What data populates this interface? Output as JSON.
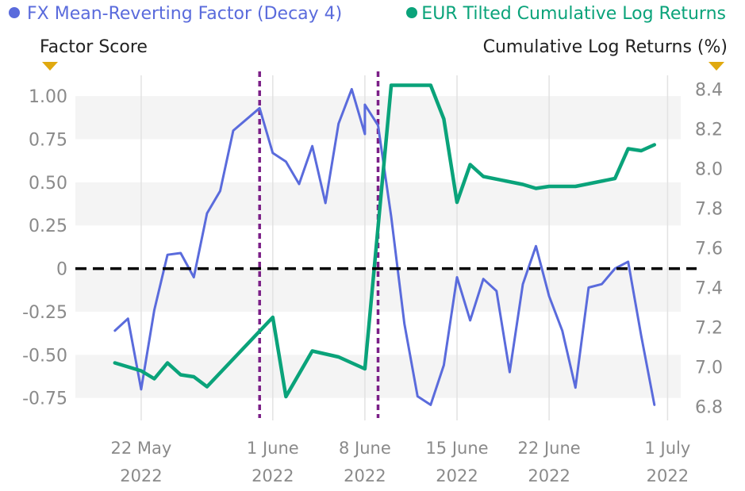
{
  "chart_data": {
    "type": "line",
    "legend": {
      "placement": "top",
      "entries": [
        {
          "name": "FX Mean-Reverting Factor (Decay 4)",
          "color": "#5a6bdc",
          "axis": "left"
        },
        {
          "name": "EUR Tilted Cumulative Log Returns",
          "color": "#0aa37a",
          "axis": "right"
        }
      ]
    },
    "left_axis": {
      "title": "Factor Score",
      "ylim": [
        -0.88,
        1.12
      ],
      "ticks": [
        1.0,
        0.75,
        0.5,
        0.25,
        0,
        -0.25,
        -0.5,
        -0.75
      ],
      "tick_labels": [
        "1.00",
        "0.75",
        "0.50",
        "0.25",
        "0",
        "-0.25",
        "-0.50",
        "-0.75"
      ]
    },
    "right_axis": {
      "title": "Cumulative Log Returns (%)",
      "ylim": [
        6.73,
        8.47
      ],
      "ticks": [
        8.4,
        8.2,
        8.0,
        7.8,
        7.6,
        7.4,
        7.2,
        7.0,
        6.8
      ],
      "tick_labels": [
        "8.4",
        "8.2",
        "8.0",
        "7.8",
        "7.6",
        "7.4",
        "7.2",
        "7.0",
        "6.8"
      ]
    },
    "x_axis": {
      "domain": [
        "2022-05-17",
        "2022-07-02"
      ],
      "ticks": [
        "2022-05-22",
        "2022-06-01",
        "2022-06-08",
        "2022-06-15",
        "2022-06-22",
        "2022-07-01"
      ],
      "tick_labels": [
        [
          "22 May",
          "2022"
        ],
        [
          "1 June",
          "2022"
        ],
        [
          "8 June",
          "2022"
        ],
        [
          "15 June",
          "2022"
        ],
        [
          "22 June",
          "2022"
        ],
        [
          "1 July",
          "2022"
        ]
      ]
    },
    "grid": "horizontal bands",
    "reference_lines": {
      "zero_line": {
        "axis": "left",
        "value": 0,
        "color": "#000000",
        "style": "dashed"
      },
      "event_markers": [
        {
          "date": "2022-05-31",
          "color": "#7b1f87",
          "style": "dotted"
        },
        {
          "date": "2022-06-09",
          "color": "#7b1f87",
          "style": "dotted"
        }
      ]
    },
    "series": [
      {
        "name": "FX Mean-Reverting Factor (Decay 4)",
        "axis": "left",
        "color": "#5a6bdc",
        "points": [
          [
            "2022-05-20",
            -0.36
          ],
          [
            "2022-05-21",
            -0.29
          ],
          [
            "2022-05-22",
            -0.7
          ],
          [
            "2022-05-23",
            -0.24
          ],
          [
            "2022-05-24",
            0.08
          ],
          [
            "2022-05-25",
            0.09
          ],
          [
            "2022-05-26",
            -0.05
          ],
          [
            "2022-05-27",
            0.32
          ],
          [
            "2022-05-28",
            0.45
          ],
          [
            "2022-05-29",
            0.8
          ],
          [
            "2022-05-31",
            0.93
          ],
          [
            "2022-06-01",
            0.67
          ],
          [
            "2022-06-02",
            0.62
          ],
          [
            "2022-06-03",
            0.49
          ],
          [
            "2022-06-04",
            0.71
          ],
          [
            "2022-06-05",
            0.38
          ],
          [
            "2022-06-06",
            0.84
          ],
          [
            "2022-06-07",
            1.04
          ],
          [
            "2022-06-08",
            0.78
          ],
          [
            "2022-06-08",
            0.95
          ],
          [
            "2022-06-09",
            0.83
          ],
          [
            "2022-06-10",
            0.3
          ],
          [
            "2022-06-11",
            -0.32
          ],
          [
            "2022-06-12",
            -0.74
          ],
          [
            "2022-06-13",
            -0.79
          ],
          [
            "2022-06-14",
            -0.56
          ],
          [
            "2022-06-15",
            -0.05
          ],
          [
            "2022-06-16",
            -0.3
          ],
          [
            "2022-06-17",
            -0.06
          ],
          [
            "2022-06-18",
            -0.13
          ],
          [
            "2022-06-19",
            -0.6
          ],
          [
            "2022-06-20",
            -0.09
          ],
          [
            "2022-06-21",
            0.13
          ],
          [
            "2022-06-22",
            -0.16
          ],
          [
            "2022-06-23",
            -0.36
          ],
          [
            "2022-06-24",
            -0.69
          ],
          [
            "2022-06-25",
            -0.11
          ],
          [
            "2022-06-26",
            -0.09
          ],
          [
            "2022-06-27",
            0.0
          ],
          [
            "2022-06-28",
            0.04
          ],
          [
            "2022-06-29",
            -0.39
          ],
          [
            "2022-06-30",
            -0.79
          ]
        ]
      },
      {
        "name": "EUR Tilted Cumulative Log Returns",
        "axis": "right",
        "color": "#0aa37a",
        "points": [
          [
            "2022-05-20",
            7.02
          ],
          [
            "2022-05-22",
            6.98
          ],
          [
            "2022-05-23",
            6.94
          ],
          [
            "2022-05-24",
            7.02
          ],
          [
            "2022-05-25",
            6.96
          ],
          [
            "2022-05-26",
            6.95
          ],
          [
            "2022-05-27",
            6.9
          ],
          [
            "2022-06-01",
            7.25
          ],
          [
            "2022-06-02",
            6.85
          ],
          [
            "2022-06-04",
            7.08
          ],
          [
            "2022-06-06",
            7.05
          ],
          [
            "2022-06-07",
            7.02
          ],
          [
            "2022-06-08",
            6.99
          ],
          [
            "2022-06-10",
            8.42
          ],
          [
            "2022-06-13",
            8.42
          ],
          [
            "2022-06-14",
            8.25
          ],
          [
            "2022-06-15",
            7.83
          ],
          [
            "2022-06-16",
            8.02
          ],
          [
            "2022-06-17",
            7.96
          ],
          [
            "2022-06-20",
            7.92
          ],
          [
            "2022-06-21",
            7.9
          ],
          [
            "2022-06-22",
            7.91
          ],
          [
            "2022-06-24",
            7.91
          ],
          [
            "2022-06-27",
            7.95
          ],
          [
            "2022-06-28",
            8.1
          ],
          [
            "2022-06-29",
            8.09
          ],
          [
            "2022-06-30",
            8.12
          ]
        ]
      }
    ]
  }
}
